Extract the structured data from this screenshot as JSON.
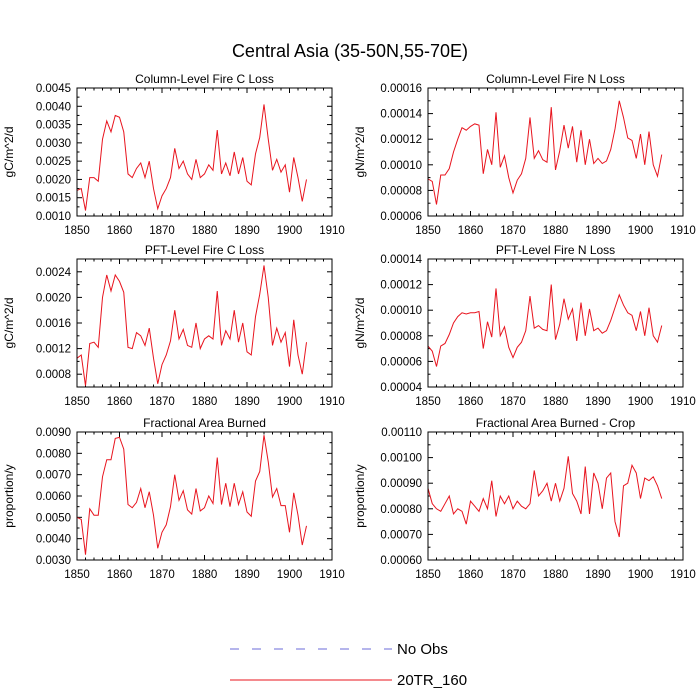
{
  "figure": {
    "title": "Central Asia (35-50N,55-70E)"
  },
  "legend": {
    "entries": [
      {
        "label": "No Obs",
        "color": "#6b6bd8",
        "style": "dashed"
      },
      {
        "label": "20TR_160",
        "color": "#e8141e",
        "style": "solid"
      }
    ]
  },
  "chart_data": [
    {
      "type": "line",
      "title": "Column-Level Fire C Loss",
      "ylabel": "gC/m^2/d",
      "xlim": [
        1850,
        1910
      ],
      "ylim": [
        0.001,
        0.0045
      ],
      "xticks": [
        1850,
        1860,
        1870,
        1880,
        1890,
        1900,
        1910
      ],
      "xtick_labels": [
        "1850",
        "1860",
        "1870",
        "1880",
        "1890",
        "1900",
        "1910"
      ],
      "yticks": [
        0.001,
        0.0015,
        0.002,
        0.0025,
        0.003,
        0.0035,
        0.004,
        0.0045
      ],
      "ytick_labels": [
        "0.0010",
        "0.0015",
        "0.0020",
        "0.0025",
        "0.0030",
        "0.0035",
        "0.0040",
        "0.0045"
      ],
      "x_start": 1850,
      "series": [
        {
          "name": "20TR_160",
          "values": [
            0.0017,
            0.00175,
            0.00115,
            0.00205,
            0.00205,
            0.00195,
            0.0031,
            0.0036,
            0.0033,
            0.00375,
            0.0037,
            0.0033,
            0.00215,
            0.00205,
            0.0023,
            0.00245,
            0.00205,
            0.0025,
            0.00175,
            0.0012,
            0.00155,
            0.00175,
            0.00205,
            0.00285,
            0.0023,
            0.0025,
            0.00215,
            0.002,
            0.00255,
            0.00205,
            0.00215,
            0.0024,
            0.00225,
            0.00335,
            0.00215,
            0.00245,
            0.0021,
            0.00275,
            0.00215,
            0.0026,
            0.00195,
            0.00185,
            0.0027,
            0.00315,
            0.00405,
            0.0031,
            0.00225,
            0.00255,
            0.0022,
            0.0024,
            0.00165,
            0.0026,
            0.00205,
            0.0014,
            0.002
          ]
        }
      ]
    },
    {
      "type": "line",
      "title": "Column-Level Fire N Loss",
      "ylabel": "gN/m^2/d",
      "xlim": [
        1850,
        1910
      ],
      "ylim": [
        6e-05,
        0.00016
      ],
      "xticks": [
        1850,
        1860,
        1870,
        1880,
        1890,
        1900,
        1910
      ],
      "xtick_labels": [
        "1850",
        "1860",
        "1870",
        "1880",
        "1890",
        "1900",
        "1910"
      ],
      "yticks": [
        6e-05,
        8e-05,
        0.0001,
        0.00012,
        0.00014,
        0.00016
      ],
      "ytick_labels": [
        "0.00006",
        "0.00008",
        "0.00010",
        "0.00012",
        "0.00014",
        "0.00016"
      ],
      "x_start": 1850,
      "series": [
        {
          "name": "20TR_160",
          "values": [
            8.9e-05,
            8.7e-05,
            6.9e-05,
            9.2e-05,
            9.2e-05,
            9.7e-05,
            0.00011,
            0.00012,
            0.000129,
            0.000127,
            0.00013,
            0.000132,
            0.000131,
            9.3e-05,
            0.000112,
            0.0001,
            0.000141,
            9.8e-05,
            0.000107,
            9e-05,
            7.8e-05,
            8.8e-05,
            9.3e-05,
            0.000105,
            0.000137,
            0.000105,
            0.000111,
            0.000104,
            0.000102,
            0.000145,
            9.6e-05,
            0.000111,
            0.000131,
            0.000113,
            0.00013,
            0.000102,
            0.000127,
            0.0001,
            0.00012,
            0.000101,
            0.000105,
            0.000101,
            0.000103,
            0.000112,
            0.000128,
            0.00015,
            0.000137,
            0.000121,
            0.000119,
            0.000105,
            0.000124,
            0.0001,
            0.000126,
            0.0001,
            9.1e-05,
            0.000108
          ]
        }
      ]
    },
    {
      "type": "line",
      "title": "PFT-Level Fire C Loss",
      "ylabel": "gC/m^2/d",
      "xlim": [
        1850,
        1910
      ],
      "ylim": [
        0.0006,
        0.0026
      ],
      "xticks": [
        1850,
        1860,
        1870,
        1880,
        1890,
        1900,
        1910
      ],
      "xtick_labels": [
        "1850",
        "1860",
        "1870",
        "1880",
        "1890",
        "1900",
        "1910"
      ],
      "yticks": [
        0.0008,
        0.0012,
        0.0016,
        0.002,
        0.0024
      ],
      "ytick_labels": [
        "0.0008",
        "0.0012",
        "0.0016",
        "0.0020",
        "0.0024"
      ],
      "x_start": 1850,
      "series": [
        {
          "name": "20TR_160",
          "values": [
            0.00105,
            0.0011,
            0.00062,
            0.00128,
            0.0013,
            0.00122,
            0.002,
            0.00235,
            0.0021,
            0.00235,
            0.00225,
            0.00208,
            0.00122,
            0.0012,
            0.00145,
            0.0014,
            0.00125,
            0.00152,
            0.00105,
            0.00065,
            0.00095,
            0.0011,
            0.00132,
            0.0018,
            0.00135,
            0.0015,
            0.00125,
            0.00122,
            0.0016,
            0.0012,
            0.00135,
            0.0014,
            0.00135,
            0.0021,
            0.00125,
            0.00148,
            0.00135,
            0.0018,
            0.0013,
            0.0016,
            0.00115,
            0.0011,
            0.0017,
            0.00205,
            0.0025,
            0.002,
            0.00125,
            0.00152,
            0.0013,
            0.00145,
            0.00092,
            0.00165,
            0.0011,
            0.0008,
            0.0013
          ]
        }
      ]
    },
    {
      "type": "line",
      "title": "PFT-Level Fire N Loss",
      "ylabel": "gN/m^2/d",
      "xlim": [
        1850,
        1910
      ],
      "ylim": [
        4e-05,
        0.00014
      ],
      "xticks": [
        1850,
        1860,
        1870,
        1880,
        1890,
        1900,
        1910
      ],
      "xtick_labels": [
        "1850",
        "1860",
        "1870",
        "1880",
        "1890",
        "1900",
        "1910"
      ],
      "yticks": [
        4e-05,
        6e-05,
        8e-05,
        0.0001,
        0.00012,
        0.00014
      ],
      "ytick_labels": [
        "0.00004",
        "0.00006",
        "0.00008",
        "0.00010",
        "0.00012",
        "0.00014"
      ],
      "x_start": 1850,
      "series": [
        {
          "name": "20TR_160",
          "values": [
            7.2e-05,
            6.8e-05,
            5.6e-05,
            7.2e-05,
            7.4e-05,
            8.1e-05,
            9e-05,
            9.5e-05,
            9.8e-05,
            9.7e-05,
            9.8e-05,
            9.8e-05,
            9.9e-05,
            7e-05,
            9.1e-05,
            7.9e-05,
            0.000117,
            8e-05,
            8.7e-05,
            7.1e-05,
            6.3e-05,
            7.1e-05,
            7.5e-05,
            8.4e-05,
            0.000111,
            8.6e-05,
            8.8e-05,
            8.5e-05,
            8.4e-05,
            0.00012,
            7.7e-05,
            8.9e-05,
            0.000109,
            9.3e-05,
            0.000101,
            7.6e-05,
            0.000106,
            8e-05,
            0.000101,
            8.4e-05,
            8.6e-05,
            8.2e-05,
            8.4e-05,
            9.2e-05,
            0.000102,
            0.000112,
            0.000104,
            9.8e-05,
            9.6e-05,
            8.4e-05,
            9.9e-05,
            8e-05,
            0.000102,
            8e-05,
            7.5e-05,
            8.8e-05
          ]
        }
      ]
    },
    {
      "type": "line",
      "title": "Fractional Area Burned",
      "ylabel": "proportion/y",
      "xlim": [
        1850,
        1910
      ],
      "ylim": [
        0.003,
        0.009
      ],
      "xticks": [
        1850,
        1860,
        1870,
        1880,
        1890,
        1900,
        1910
      ],
      "xtick_labels": [
        "1850",
        "1860",
        "1870",
        "1880",
        "1890",
        "1900",
        "1910"
      ],
      "yticks": [
        0.003,
        0.004,
        0.005,
        0.006,
        0.007,
        0.008,
        0.009
      ],
      "ytick_labels": [
        "0.0030",
        "0.0040",
        "0.0050",
        "0.0060",
        "0.0070",
        "0.0080",
        "0.0090"
      ],
      "x_start": 1850,
      "series": [
        {
          "name": "20TR_160",
          "values": [
            0.005,
            0.0049,
            0.00325,
            0.0054,
            0.0051,
            0.0051,
            0.0069,
            0.0077,
            0.0077,
            0.0087,
            0.00875,
            0.0082,
            0.0056,
            0.00545,
            0.0057,
            0.00635,
            0.00545,
            0.0062,
            0.0051,
            0.00355,
            0.0043,
            0.00465,
            0.0055,
            0.007,
            0.0058,
            0.00625,
            0.00535,
            0.00515,
            0.00635,
            0.0053,
            0.00545,
            0.006,
            0.00565,
            0.0078,
            0.0056,
            0.0066,
            0.0055,
            0.0066,
            0.0056,
            0.0062,
            0.00525,
            0.00505,
            0.0067,
            0.00715,
            0.00885,
            0.0076,
            0.00595,
            0.00635,
            0.00555,
            0.00555,
            0.0043,
            0.00615,
            0.0051,
            0.0037,
            0.0046
          ]
        }
      ]
    },
    {
      "type": "line",
      "title": "Fractional Area Burned - Crop",
      "ylabel": "proportion/y",
      "xlim": [
        1850,
        1910
      ],
      "ylim": [
        0.0006,
        0.0011
      ],
      "xticks": [
        1850,
        1860,
        1870,
        1880,
        1890,
        1900,
        1910
      ],
      "xtick_labels": [
        "1850",
        "1860",
        "1870",
        "1880",
        "1890",
        "1900",
        "1910"
      ],
      "yticks": [
        0.0006,
        0.0007,
        0.0008,
        0.0009,
        0.001,
        0.0011
      ],
      "ytick_labels": [
        "0.00060",
        "0.00070",
        "0.00080",
        "0.00090",
        "0.00100",
        "0.00110"
      ],
      "x_start": 1850,
      "series": [
        {
          "name": "20TR_160",
          "values": [
            0.00088,
            0.00082,
            0.0008,
            0.00079,
            0.00082,
            0.00085,
            0.00078,
            0.0008,
            0.00079,
            0.00074,
            0.00083,
            0.00081,
            0.00079,
            0.00084,
            0.0008,
            0.00091,
            0.00077,
            0.00085,
            0.00082,
            0.00085,
            0.0008,
            0.00083,
            0.00081,
            0.0008,
            0.00082,
            0.00095,
            0.00085,
            0.00087,
            0.0009,
            0.00083,
            0.0009,
            0.00083,
            0.00088,
            0.001005,
            0.00086,
            0.00083,
            0.00078,
            0.000965,
            0.00078,
            0.00094,
            0.0009,
            0.0008,
            0.00092,
            0.00094,
            0.00075,
            0.00069,
            0.00089,
            0.0009,
            0.00097,
            0.00094,
            0.00084,
            0.00092,
            0.00091,
            0.000925,
            0.00089,
            0.00084
          ]
        }
      ]
    }
  ]
}
